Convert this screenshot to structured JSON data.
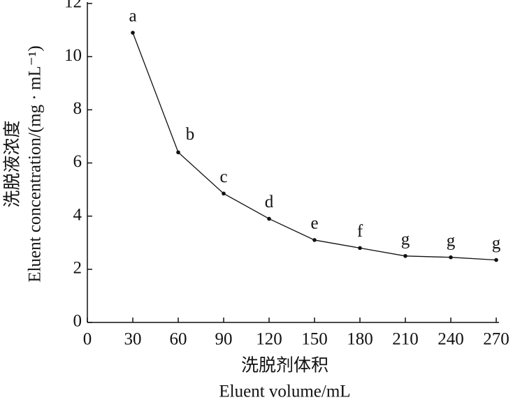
{
  "chart_data": {
    "type": "line",
    "x": [
      30,
      60,
      90,
      120,
      150,
      180,
      210,
      240,
      270
    ],
    "values": [
      10.9,
      6.4,
      4.85,
      3.9,
      3.1,
      2.8,
      2.5,
      2.45,
      2.35
    ],
    "point_labels": [
      "a",
      "b",
      "c",
      "d",
      "e",
      "f",
      "g",
      "g",
      "g"
    ],
    "color": "#111111",
    "xlim": [
      0,
      270
    ],
    "xticks": [
      0,
      30,
      60,
      90,
      120,
      150,
      180,
      210,
      240,
      270
    ],
    "ylim": [
      0,
      12
    ],
    "yticks": [
      0,
      2,
      4,
      6,
      8,
      10,
      12
    ],
    "x_label": [
      "洗脱剂体积",
      "Eluent volume/mL"
    ],
    "y_label": [
      "洗脱液浓度",
      "Eluent concentration/(mg · mL⁻¹)"
    ],
    "grid": false
  }
}
